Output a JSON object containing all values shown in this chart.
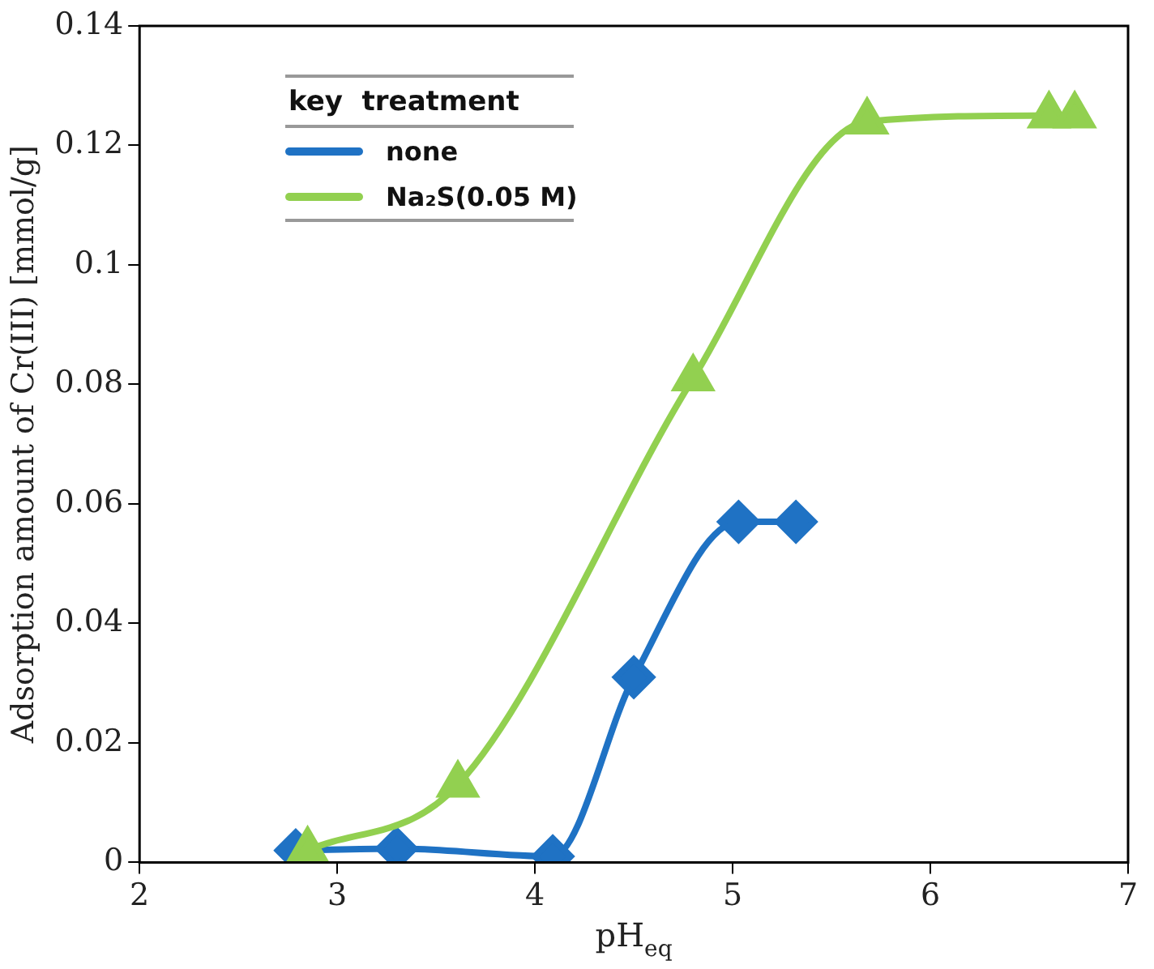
{
  "chart_data": {
    "type": "line",
    "xlabel": "pH$_{eq}$",
    "ylabel": "Adsorption amount of Cr(III) [mmol/g]",
    "legend_title": "key  treatment",
    "legend": "top left",
    "grid": false,
    "line_style": "solid",
    "xlim": [
      2,
      7
    ],
    "xticks": [
      2,
      3,
      4,
      5,
      6,
      7
    ],
    "ylim": [
      0,
      0.14
    ],
    "yticks": [
      0,
      0.02,
      0.04,
      0.06,
      0.08,
      0.1,
      0.12,
      0.14
    ],
    "series": [
      {
        "name": "none",
        "color": "#1f72c4",
        "marker": "diamond",
        "x": [
          2.79,
          3.3,
          4.09,
          4.5,
          5.03,
          5.32
        ],
        "values": [
          0.002,
          0.0023,
          0.001,
          0.031,
          0.057,
          0.057
        ]
      },
      {
        "name": "Na₂S(0.05 M)",
        "color": "#92d050",
        "marker": "triangle",
        "x": [
          2.85,
          3.61,
          4.8,
          5.68,
          6.6,
          6.73
        ],
        "values": [
          0.002,
          0.013,
          0.081,
          0.124,
          0.125,
          0.125
        ]
      }
    ]
  }
}
